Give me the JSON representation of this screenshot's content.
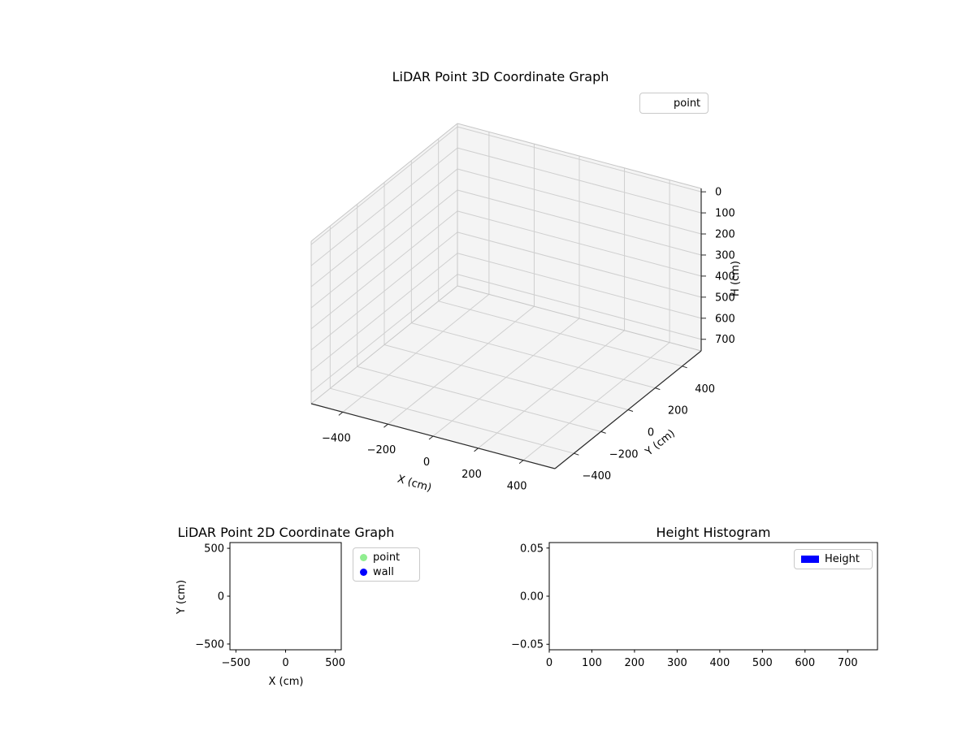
{
  "figure": {
    "background": "#ffffff"
  },
  "chart_data": [
    {
      "type": "scatter",
      "projection": "3d",
      "title": "LiDAR Point 3D Coordinate Graph",
      "xlabel": "X (cm)",
      "ylabel": "Y (cm)",
      "zlabel": "H (cm)",
      "x_ticks": {
        "values": [
          -400,
          -200,
          0,
          200,
          400
        ],
        "labels": [
          "−400",
          "−200",
          "0",
          "200",
          "400"
        ]
      },
      "y_ticks": {
        "values": [
          -400,
          -200,
          0,
          200,
          400
        ],
        "labels": [
          "−400",
          "−200",
          "0",
          "200",
          "400"
        ]
      },
      "z_ticks": {
        "values": [
          0,
          100,
          200,
          300,
          400,
          500,
          600,
          700
        ],
        "labels": [
          "0",
          "100",
          "200",
          "300",
          "400",
          "500",
          "600",
          "700"
        ]
      },
      "x_range": [
        -540,
        540
      ],
      "y_range": [
        -540,
        540
      ],
      "z_range": [
        -16,
        755
      ],
      "z_axis_inverted": true,
      "grid": true,
      "legend_position": "upper right",
      "legend": [
        {
          "label": "point"
        }
      ],
      "points": []
    },
    {
      "type": "scatter",
      "title": "LiDAR Point 2D Coordinate Graph",
      "xlabel": "X (cm)",
      "ylabel": "Y (cm)",
      "x_ticks": {
        "values": [
          -500,
          0,
          500
        ],
        "labels": [
          "−500",
          "0",
          "500"
        ]
      },
      "y_ticks": {
        "values": [
          500,
          0,
          -500
        ],
        "labels": [
          "500",
          "0",
          "−500"
        ]
      },
      "x_range": [
        -560,
        560
      ],
      "y_range": [
        -560,
        560
      ],
      "grid": false,
      "legend_position": "outside right",
      "legend": [
        {
          "label": "point",
          "color": "#90ee90",
          "marker": "circle"
        },
        {
          "label": "wall",
          "color": "#0000ff",
          "marker": "circle"
        }
      ],
      "points": []
    },
    {
      "type": "bar",
      "title": "Height Histogram",
      "xlabel": "",
      "ylabel": "",
      "x_ticks": {
        "values": [
          0,
          100,
          200,
          300,
          400,
          500,
          600,
          700
        ],
        "labels": [
          "0",
          "100",
          "200",
          "300",
          "400",
          "500",
          "600",
          "700"
        ]
      },
      "y_ticks": {
        "values": [
          0.05,
          0,
          -0.05
        ],
        "labels": [
          "0.05",
          "0.00",
          "−0.05"
        ]
      },
      "x_range": [
        0,
        770
      ],
      "y_range": [
        -0.0557,
        0.0557
      ],
      "grid": false,
      "legend_position": "upper right",
      "legend": [
        {
          "label": "Height",
          "color": "#0000ff",
          "marker": "rect"
        }
      ],
      "values": []
    }
  ]
}
